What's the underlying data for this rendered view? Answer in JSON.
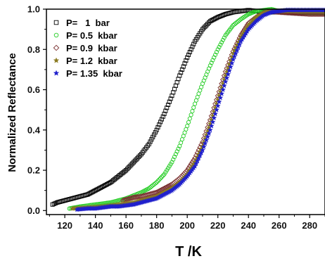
{
  "chart_data": {
    "type": "scatter",
    "title": "",
    "xlabel": "T /K",
    "ylabel": "Normalized Reflectance",
    "xlim": [
      108,
      290
    ],
    "ylim": [
      -0.02,
      1.0
    ],
    "xticks": [
      120,
      140,
      160,
      180,
      200,
      220,
      240,
      260,
      280
    ],
    "yticks": [
      0.0,
      0.2,
      0.4,
      0.6,
      0.8,
      1.0
    ],
    "ytick_labels": [
      "0.0",
      "0.2",
      "0.4",
      "0.6",
      "0.8",
      "1.0"
    ],
    "grid": false,
    "legend_position": "top-left",
    "series": [
      {
        "name": "P=   1  bar",
        "marker": "square",
        "color": "#000000",
        "x": [
          112,
          115,
          120,
          125,
          130,
          135,
          140,
          145,
          150,
          155,
          160,
          165,
          170,
          175,
          180,
          185,
          190,
          195,
          200,
          205,
          210,
          215,
          220,
          225,
          230,
          235,
          240,
          245,
          250,
          260,
          270,
          280,
          290
        ],
        "y": [
          0.03,
          0.04,
          0.05,
          0.06,
          0.07,
          0.08,
          0.1,
          0.12,
          0.14,
          0.17,
          0.2,
          0.24,
          0.28,
          0.33,
          0.4,
          0.48,
          0.57,
          0.67,
          0.76,
          0.84,
          0.9,
          0.94,
          0.96,
          0.975,
          0.985,
          0.99,
          0.995,
          0.99,
          0.985,
          0.985,
          0.98,
          0.98,
          0.98
        ]
      },
      {
        "name": "P= 0.5  kbar",
        "marker": "circle",
        "color": "#22cc22",
        "x": [
          123,
          130,
          140,
          150,
          160,
          170,
          175,
          180,
          185,
          190,
          195,
          200,
          205,
          210,
          215,
          220,
          225,
          230,
          235,
          240,
          245,
          250,
          255,
          260,
          270,
          280,
          290
        ],
        "y": [
          0.01,
          0.02,
          0.03,
          0.04,
          0.06,
          0.09,
          0.11,
          0.14,
          0.18,
          0.24,
          0.32,
          0.42,
          0.53,
          0.63,
          0.72,
          0.8,
          0.87,
          0.92,
          0.95,
          0.975,
          0.99,
          0.995,
          1.0,
          0.99,
          0.99,
          0.98,
          0.98
        ]
      },
      {
        "name": "P= 0.9  kbar",
        "marker": "diamond",
        "color": "#7a3030",
        "x": [
          158,
          165,
          170,
          175,
          180,
          185,
          190,
          195,
          200,
          205,
          210,
          215,
          220,
          225,
          230,
          235,
          240,
          245,
          250,
          255,
          260,
          270,
          280,
          290
        ],
        "y": [
          0.05,
          0.065,
          0.07,
          0.08,
          0.09,
          0.11,
          0.13,
          0.16,
          0.2,
          0.26,
          0.34,
          0.45,
          0.57,
          0.69,
          0.79,
          0.87,
          0.93,
          0.96,
          0.98,
          0.99,
          0.985,
          0.98,
          0.975,
          0.975
        ]
      },
      {
        "name": "P= 1.2  kbar",
        "marker": "star",
        "color": "#8a7a20",
        "x": [
          125,
          135,
          145,
          155,
          165,
          175,
          180,
          185,
          190,
          195,
          200,
          205,
          210,
          215,
          220,
          225,
          230,
          235,
          240,
          245,
          250,
          255,
          260,
          270,
          280,
          290
        ],
        "y": [
          0.01,
          0.015,
          0.02,
          0.03,
          0.04,
          0.06,
          0.07,
          0.09,
          0.11,
          0.14,
          0.18,
          0.24,
          0.32,
          0.43,
          0.55,
          0.67,
          0.78,
          0.86,
          0.92,
          0.96,
          0.98,
          0.99,
          0.99,
          0.99,
          0.99,
          0.99
        ]
      },
      {
        "name": "P= 1.35  kbar",
        "marker": "star",
        "color": "#2020cc",
        "x": [
          128,
          135,
          140,
          145,
          150,
          155,
          160,
          165,
          170,
          175,
          180,
          185,
          190,
          195,
          200,
          205,
          210,
          215,
          220,
          225,
          230,
          235,
          240,
          245,
          250,
          255,
          260,
          265,
          270,
          280,
          290
        ],
        "y": [
          0.005,
          0.01,
          0.01,
          0.015,
          0.02,
          0.02,
          0.025,
          0.03,
          0.04,
          0.05,
          0.06,
          0.08,
          0.1,
          0.13,
          0.17,
          0.22,
          0.3,
          0.4,
          0.52,
          0.64,
          0.75,
          0.84,
          0.9,
          0.94,
          0.97,
          0.985,
          0.99,
          0.995,
          0.995,
          0.995,
          0.995
        ]
      }
    ]
  }
}
